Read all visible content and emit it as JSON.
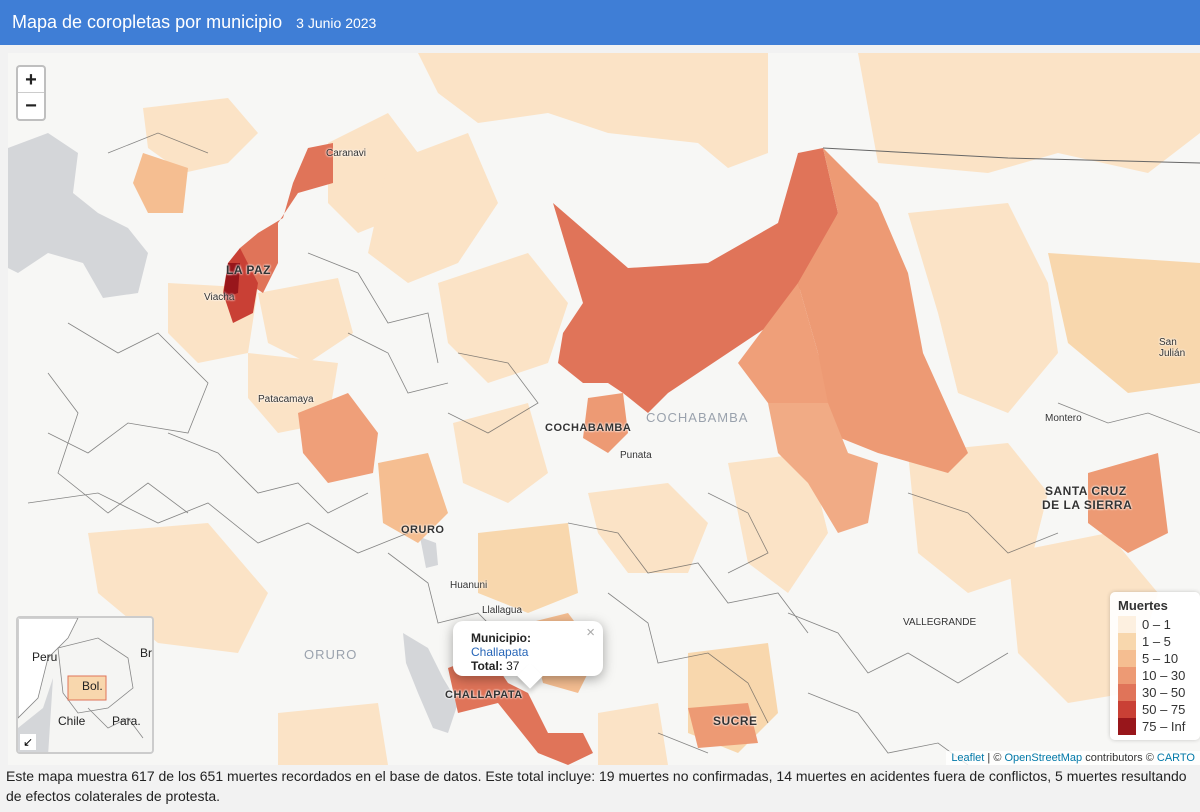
{
  "header": {
    "title": "Mapa de coropletas por municipio",
    "date": "3 Junio 2023"
  },
  "map": {
    "zoom_in": "+",
    "zoom_out": "−",
    "cities": {
      "caranavi": "Caranavi",
      "viacha": "Viacha",
      "patacamaya": "Patacamaya",
      "punata": "Punata",
      "huanuni": "Huanuni",
      "llallagua": "Llallagua",
      "montero": "Montero",
      "san_julian": "San Julián",
      "vallegrande": "VALLEGRANDE"
    },
    "big_cities": {
      "la_paz": "LA PAZ",
      "cochabamba": "COCHABAMBA",
      "oruro": "ORURO",
      "santa_cruz_1": "SANTA CRUZ",
      "santa_cruz_2": "DE LA SIERRA",
      "sucre": "SUCRE",
      "challapata": "CHALLAPATA"
    },
    "regions": {
      "cochabamba": "COCHABAMBA",
      "oruro": "ORURO"
    },
    "popup": {
      "municipio_label": "Municipio:",
      "municipio_value": "Challapata",
      "total_label": "Total:",
      "total_value": "37",
      "close": "×"
    },
    "legend": {
      "title": "Muertes",
      "items": [
        {
          "label": "0 – 1",
          "color": "#fdf0e0"
        },
        {
          "label": "1 – 5",
          "color": "#f8d7ad"
        },
        {
          "label": "5 – 10",
          "color": "#f5be91"
        },
        {
          "label": "10 – 30",
          "color": "#ed9a74"
        },
        {
          "label": "30 – 50",
          "color": "#e07459"
        },
        {
          "label": "50 – 75",
          "color": "#c94035"
        },
        {
          "label": "75 – Inf",
          "color": "#98161b"
        }
      ]
    },
    "minimap": {
      "peru": "Peru",
      "br": "Br",
      "bol": "Bol.",
      "chile": "Chile",
      "para": "Para.",
      "toggle": "↙"
    },
    "attribution": {
      "leaflet": "Leaflet",
      "sep": " | © ",
      "osm": "OpenStreetMap",
      "contrib": " contributors © ",
      "carto": "CARTO"
    }
  },
  "footer": {
    "text": "Este mapa muestra 617 de los 651 muertes recordados en el base de datos. Este total incluye: 19 muertes no confirmadas, 14 muertes en acidentes fuera de conflictos, 5 muertes resultando de efectos colaterales de protesta."
  }
}
